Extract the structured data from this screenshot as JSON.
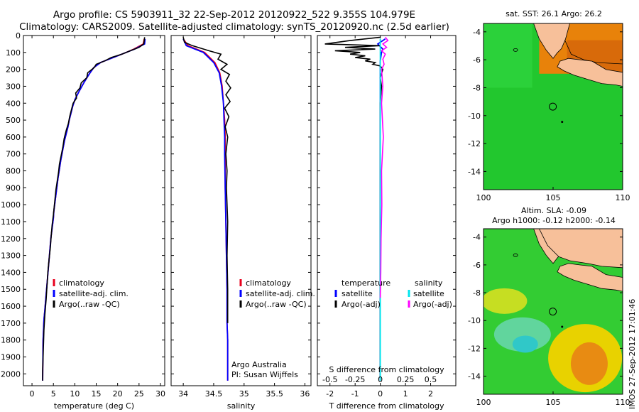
{
  "header": {
    "line1": "Argo profile: CS 5903911_32 22-Sep-2012 20120922_522 9.355S 104.979E",
    "line2": "Climatology: CARS2009. Satellite-adjusted climatology: synTS_20120920.nc (2.5d earlier)"
  },
  "side_label": "IMOS 27-Sep-2012 17:01:46",
  "chart_data": [
    {
      "type": "line",
      "id": "temperature",
      "xlabel": "temperature (deg C)",
      "xlim": [
        -2,
        31
      ],
      "xticks": [
        0,
        5,
        10,
        15,
        20,
        25,
        30
      ],
      "ylim": [
        2070,
        0
      ],
      "yticks": [
        0,
        100,
        200,
        300,
        400,
        500,
        600,
        700,
        800,
        900,
        1000,
        1100,
        1200,
        1300,
        1400,
        1500,
        1600,
        1700,
        1800,
        1900,
        2000
      ],
      "legend": [
        "climatology",
        "satellite-adj. clim.",
        "Argo(..raw -QC)"
      ],
      "legend_position": "lower-right",
      "series": [
        {
          "name": "climatology",
          "color": "#e8001c",
          "x": [
            26.2,
            26.0,
            23.8,
            22.0,
            20.0,
            18.0,
            16.0,
            14.4,
            13.3,
            12.1,
            11.0,
            10.0,
            9.5,
            9.1,
            8.7,
            8.4,
            8.0,
            7.6,
            7.3,
            7.0,
            6.7,
            6.4,
            6.1,
            5.9,
            5.7,
            5.5,
            5.3,
            5.1,
            5.0,
            4.8,
            4.6,
            4.4,
            4.2,
            4.0,
            3.8,
            3.6,
            3.4,
            3.2,
            3.0,
            2.8,
            2.7,
            2.6,
            2.55,
            2.5
          ],
          "y": [
            20,
            50,
            80,
            100,
            120,
            140,
            160,
            190,
            230,
            280,
            330,
            380,
            420,
            460,
            500,
            540,
            580,
            620,
            660,
            700,
            740,
            790,
            840,
            880,
            920,
            960,
            1000,
            1040,
            1080,
            1120,
            1160,
            1200,
            1260,
            1320,
            1380,
            1440,
            1500,
            1560,
            1620,
            1680,
            1740,
            1800,
            1900,
            2040
          ]
        },
        {
          "name": "satellite-adj. clim.",
          "color": "#0000ff",
          "x": [
            26.4,
            26.3,
            24.0,
            22.0,
            20.0,
            18.0,
            16.0,
            14.4,
            13.3,
            12.1,
            11.0,
            10.0,
            9.5,
            9.1,
            8.7,
            8.4,
            8.0,
            7.6,
            7.3,
            7.0,
            6.7,
            6.4,
            6.1,
            5.9,
            5.7,
            5.5,
            5.3,
            5.1,
            5.0,
            4.8,
            4.6,
            4.4,
            4.2,
            4.0,
            3.8,
            3.6,
            3.4,
            3.2,
            3.0,
            2.8,
            2.7,
            2.6,
            2.55,
            2.5
          ],
          "y": [
            20,
            50,
            80,
            100,
            120,
            140,
            160,
            190,
            230,
            280,
            330,
            380,
            420,
            460,
            500,
            540,
            580,
            620,
            660,
            700,
            740,
            790,
            840,
            880,
            920,
            960,
            1000,
            1040,
            1080,
            1120,
            1160,
            1200,
            1260,
            1320,
            1380,
            1440,
            1500,
            1560,
            1620,
            1680,
            1740,
            1800,
            1900,
            2040
          ]
        },
        {
          "name": "Argo(..raw -QC)",
          "color": "#000000",
          "x": [
            26.3,
            26.1,
            25.0,
            23.0,
            21.0,
            18.5,
            17.0,
            15.0,
            14.5,
            13.0,
            12.8,
            11.5,
            11.2,
            10.2,
            10.4,
            9.6,
            9.2,
            8.8,
            8.5,
            8.0,
            7.5,
            7.2,
            6.8,
            6.4,
            6.2,
            5.9,
            5.6,
            5.4,
            5.2,
            5.0,
            4.7,
            4.5,
            4.3,
            4.0,
            3.7,
            3.5,
            3.3,
            3.0,
            2.8,
            2.7,
            2.6,
            2.5,
            2.5
          ],
          "y": [
            10,
            50,
            70,
            90,
            110,
            130,
            150,
            170,
            190,
            220,
            250,
            280,
            310,
            340,
            370,
            400,
            440,
            480,
            520,
            560,
            610,
            660,
            710,
            760,
            810,
            860,
            910,
            960,
            1010,
            1060,
            1120,
            1180,
            1250,
            1320,
            1400,
            1480,
            1560,
            1650,
            1740,
            1820,
            1900,
            1980,
            2040
          ]
        }
      ]
    },
    {
      "type": "line",
      "id": "salinity",
      "xlabel": "salinity",
      "xlim": [
        33.8,
        36.1
      ],
      "xticks": [
        34,
        34.5,
        35,
        35.5,
        36
      ],
      "ylim": [
        2070,
        0
      ],
      "legend": [
        "climatology",
        "satellite-adj. clim.",
        "Argo(..raw -QC)"
      ],
      "legend_position": "lower-right",
      "annotation": [
        "Argo Australia",
        "PI: Susan Wijffels"
      ],
      "series": [
        {
          "name": "climatology",
          "color": "#e8001c",
          "x": [
            34.0,
            34.08,
            34.35,
            34.52,
            34.6,
            34.64,
            34.66,
            34.68,
            34.69,
            34.69,
            34.69,
            34.7,
            34.71,
            34.72,
            34.72,
            34.73,
            34.73,
            34.73
          ],
          "y": [
            20,
            60,
            100,
            160,
            220,
            300,
            400,
            500,
            600,
            700,
            900,
            1100,
            1300,
            1500,
            1700,
            1800,
            1900,
            2040
          ]
        },
        {
          "name": "satellite-adj. clim.",
          "color": "#0000ff",
          "x": [
            34.0,
            34.05,
            34.33,
            34.5,
            34.59,
            34.63,
            34.66,
            34.67,
            34.68,
            34.68,
            34.69,
            34.7,
            34.71,
            34.72,
            34.72,
            34.73,
            34.73,
            34.73
          ],
          "y": [
            20,
            60,
            100,
            160,
            220,
            300,
            400,
            500,
            600,
            700,
            900,
            1100,
            1300,
            1500,
            1700,
            1800,
            1900,
            2040
          ]
        },
        {
          "name": "Argo(..raw -QC)",
          "color": "#000000",
          "x": [
            34.0,
            34.02,
            34.15,
            34.42,
            34.62,
            34.57,
            34.72,
            34.62,
            34.76,
            34.7,
            34.78,
            34.7,
            34.77,
            34.68,
            34.75,
            34.69,
            34.73,
            34.7,
            34.72,
            34.71,
            34.73,
            34.72,
            34.73,
            34.73
          ],
          "y": [
            10,
            40,
            60,
            90,
            110,
            140,
            170,
            200,
            230,
            270,
            310,
            350,
            390,
            430,
            480,
            540,
            600,
            700,
            800,
            900,
            1100,
            1300,
            1500,
            1700
          ]
        }
      ]
    },
    {
      "type": "line",
      "id": "differences",
      "xlabel_bottom": "T difference from climatology",
      "xlabel_top": "S difference from climatology",
      "xlim": [
        -2.5,
        3.0
      ],
      "xticks": [
        -2,
        -1,
        0,
        1,
        2
      ],
      "xticks_top": [
        -0.5,
        -0.25,
        0,
        0.25,
        0.5
      ],
      "top_axis_scale": 4,
      "ylim": [
        2070,
        0
      ],
      "legend_left": {
        "header": "temperature",
        "items": [
          "satellite",
          "Argo(-adj)"
        ]
      },
      "legend_right": {
        "header": "salinity",
        "items": [
          "satellite",
          "Argo(-adj)"
        ]
      },
      "series": [
        {
          "name": "satellite",
          "group": "temperature",
          "color": "#0000ff",
          "x": [
            0.2,
            -0.1,
            0.1,
            0.05,
            0.0,
            0.0,
            0.0,
            0.0,
            0.0,
            0.0,
            0.0
          ],
          "y": [
            20,
            50,
            80,
            100,
            150,
            200,
            300,
            500,
            1000,
            1500,
            2040
          ]
        },
        {
          "name": "Argo(-adj)",
          "group": "temperature",
          "color": "#000000",
          "x": [
            0.0,
            -1.2,
            -2.2,
            0.0,
            -1.4,
            -0.2,
            -1.8,
            -0.8,
            -1.2,
            -0.6,
            -1.0,
            -0.4,
            -0.6,
            -0.2,
            -0.3,
            0.0,
            0.1,
            0.0,
            0.05,
            0.0,
            0.0
          ],
          "y": [
            10,
            30,
            50,
            60,
            70,
            80,
            90,
            100,
            110,
            120,
            130,
            140,
            150,
            160,
            170,
            180,
            200,
            250,
            300,
            400,
            2040
          ]
        },
        {
          "name": "satellite",
          "group": "salinity",
          "color": "#00e5ee",
          "x": [
            0.0,
            0.0,
            0.0,
            0.0,
            0.0,
            0.0,
            0.0
          ],
          "y": [
            20,
            100,
            300,
            600,
            1000,
            1500,
            2040
          ]
        },
        {
          "name": "Argo(-adj)",
          "group": "salinity",
          "color": "#ff00ff",
          "x": [
            0.2,
            0.3,
            0.1,
            0.25,
            0.05,
            0.2,
            0.1,
            0.15,
            0.05,
            0.1,
            0.05,
            0.12,
            0.05,
            0.06,
            0.03,
            0.02,
            0.0
          ],
          "y": [
            10,
            30,
            50,
            70,
            90,
            110,
            140,
            170,
            200,
            300,
            400,
            600,
            800,
            1000,
            1200,
            1400,
            1550
          ]
        }
      ]
    },
    {
      "type": "heatmap",
      "id": "sst-map",
      "title": "sat. SST: 26.1  Argo: 26.2",
      "xlim": [
        100,
        110
      ],
      "ylim": [
        -15.3,
        -3.4
      ],
      "xticks": [
        100,
        105,
        110
      ],
      "yticks": [
        -4,
        -6,
        -8,
        -10,
        -12,
        -14
      ],
      "float_position": [
        104.979,
        -9.355
      ]
    },
    {
      "type": "heatmap",
      "id": "sla-map",
      "title_lines": [
        "Altim. SLA: -0.09",
        "Argo h1000: -0.12 h2000: -0.14"
      ],
      "xlim": [
        100,
        110
      ],
      "ylim": [
        -15.3,
        -3.4
      ],
      "xticks": [
        100,
        105,
        110
      ],
      "yticks": [
        -4,
        -6,
        -8,
        -10,
        -12,
        -14
      ],
      "float_position": [
        104.979,
        -9.355
      ]
    }
  ],
  "colors": {
    "land": "#f7c09a",
    "sst_water": "#22c72e",
    "sst_warm": "#e8820a",
    "sla_green": "#33cc33",
    "sla_cyan": "#30c8c8",
    "sla_yellow": "#e8d200",
    "sla_orange": "#e88b12"
  }
}
